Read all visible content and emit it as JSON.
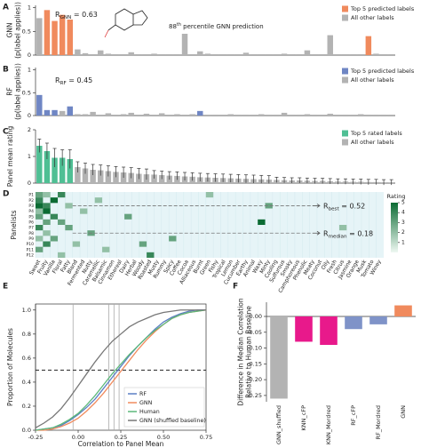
{
  "chart_data": [
    {
      "type": "bar",
      "panel": "A",
      "ylabel": [
        "GNN",
        "(p(label applies))"
      ],
      "ylim": [
        0,
        1.05
      ],
      "yticks": [
        0,
        0.5,
        1
      ],
      "legend": "upper right",
      "annotations": [
        {
          "text": "R",
          "sub": "GNN",
          "rest": " = 0.63"
        },
        {
          "text": "88",
          "sup": "th",
          "rest": " percentile GNN prediction"
        }
      ],
      "series": [
        {
          "name": "Top 5 predicted labels",
          "color": "#f08a5d",
          "values": [
            null,
            0.95,
            0.72,
            0.85,
            0.75,
            null,
            null,
            null,
            null,
            null,
            null,
            null,
            null,
            null,
            null,
            null,
            null,
            null,
            null,
            null,
            null,
            null,
            null,
            null,
            null,
            null,
            null,
            null,
            null,
            null,
            null,
            null,
            null,
            null,
            null,
            null,
            null,
            null,
            null,
            null,
            null,
            null,
            null,
            0.4,
            null,
            null,
            null
          ]
        },
        {
          "name": "All other labels",
          "color": "#b3b3b3",
          "values": [
            0.78,
            null,
            null,
            null,
            null,
            0.12,
            0.04,
            0.02,
            0.1,
            0.03,
            0.02,
            0.02,
            0.06,
            0.02,
            0.02,
            0.03,
            0.02,
            0.02,
            0.02,
            0.45,
            0.02,
            0.08,
            0.03,
            0.02,
            0.02,
            0.02,
            0.02,
            0.05,
            0.02,
            0.02,
            0.02,
            0.02,
            0.03,
            0.02,
            0.02,
            0.1,
            0.02,
            0.02,
            0.42,
            0.02,
            0.02,
            0.02,
            0.02,
            null,
            0.03,
            0.02,
            0.02
          ]
        }
      ]
    },
    {
      "type": "bar",
      "panel": "B",
      "ylabel": [
        "RF",
        "(p(label applies))"
      ],
      "ylim": [
        0,
        1.05
      ],
      "yticks": [
        0,
        0.5,
        1
      ],
      "legend": "upper right",
      "annotations": [
        {
          "text": "R",
          "sub": "RF",
          "rest": " = 0.45"
        }
      ],
      "series": [
        {
          "name": "Top 5 predicted labels",
          "color": "#6f86c4",
          "values": [
            0.45,
            0.12,
            0.12,
            null,
            0.2,
            null,
            null,
            null,
            null,
            null,
            null,
            null,
            null,
            null,
            null,
            null,
            null,
            null,
            null,
            null,
            null,
            0.1,
            null,
            null,
            null,
            null,
            null,
            null,
            null,
            null,
            null,
            null,
            null,
            null,
            null,
            null,
            null,
            null,
            null,
            null,
            null,
            null,
            null,
            null,
            null,
            null,
            null
          ]
        },
        {
          "name": "All other labels",
          "color": "#b3b3b3",
          "values": [
            null,
            null,
            null,
            0.1,
            null,
            0.03,
            0.03,
            0.08,
            0.02,
            0.05,
            0.02,
            0.03,
            0.06,
            0.02,
            0.04,
            0.02,
            0.05,
            0.02,
            0.03,
            0.02,
            0.03,
            null,
            0.02,
            0.02,
            0.02,
            0.03,
            0.02,
            0.02,
            0.02,
            0.03,
            0.02,
            0.02,
            0.06,
            0.02,
            0.02,
            0.03,
            0.02,
            0.02,
            0.04,
            0.02,
            0.02,
            0.02,
            0.03,
            0.02,
            0.02,
            0.02,
            0.02
          ]
        }
      ]
    },
    {
      "type": "bar",
      "panel": "C",
      "ylabel": [
        "Panel mean rating"
      ],
      "ylim": [
        0,
        2
      ],
      "yticks": [
        0,
        1,
        2
      ],
      "legend": "upper right",
      "series": [
        {
          "name": "Top 5 rated labels",
          "color": "#4fbf94",
          "values": [
            1.4,
            1.2,
            0.95,
            0.95,
            0.9,
            null,
            null,
            null,
            null,
            null,
            null,
            null,
            null,
            null,
            null,
            null,
            null,
            null,
            null,
            null,
            null,
            null,
            null,
            null,
            null,
            null,
            null,
            null,
            null,
            null,
            null,
            null,
            null,
            null,
            null,
            null,
            null,
            null,
            null,
            null,
            null,
            null,
            null,
            null,
            null,
            null,
            null
          ],
          "errors": [
            0.25,
            0.3,
            0.35,
            0.3,
            0.35,
            null,
            null,
            null,
            null,
            null,
            null,
            null,
            null,
            null,
            null,
            null,
            null,
            null,
            null,
            null,
            null,
            null,
            null,
            null,
            null,
            null,
            null,
            null,
            null,
            null,
            null,
            null,
            null,
            null,
            null,
            null,
            null,
            null,
            null,
            null,
            null,
            null,
            null,
            null,
            null,
            null,
            null
          ]
        },
        {
          "name": "All other labels",
          "color": "#b3b3b3",
          "values": [
            null,
            null,
            null,
            null,
            null,
            0.6,
            0.55,
            0.5,
            0.48,
            0.45,
            0.42,
            0.4,
            0.38,
            0.35,
            0.33,
            0.32,
            0.3,
            0.28,
            0.27,
            0.25,
            0.24,
            0.22,
            0.21,
            0.2,
            0.19,
            0.18,
            0.17,
            0.16,
            0.15,
            0.14,
            0.13,
            0.12,
            0.11,
            0.1,
            0.1,
            0.09,
            0.08,
            0.08,
            0.07,
            0.06,
            0.06,
            0.05,
            0.05,
            0.04,
            0.04,
            0.03,
            0.03
          ],
          "errors": [
            null,
            null,
            null,
            null,
            null,
            0.2,
            0.2,
            0.2,
            0.2,
            0.2,
            0.2,
            0.2,
            0.2,
            0.2,
            0.2,
            0.15,
            0.15,
            0.15,
            0.15,
            0.15,
            0.15,
            0.15,
            0.15,
            0.15,
            0.15,
            0.15,
            0.15,
            0.15,
            0.15,
            0.15,
            0.15,
            0.1,
            0.1,
            0.1,
            0.1,
            0.1,
            0.1,
            0.1,
            0.1,
            0.1,
            0.1,
            0.1,
            0.1,
            0.1,
            0.1,
            0.1,
            0.1
          ]
        }
      ]
    },
    {
      "type": "heatmap",
      "panel": "D",
      "ylabel": [
        "Panelists"
      ],
      "colorbar_title": "Rating",
      "clim": [
        0,
        5
      ],
      "cticks": [
        1,
        2,
        3,
        4,
        5
      ],
      "cmap": [
        "#eef8f2",
        "#0b6b33"
      ],
      "categories": [
        "Sweet",
        "Fruity",
        "Vanilla",
        "Floral",
        "Fatty",
        "Bland",
        "Fermented",
        "Nutty",
        "Caramellic",
        "Balsamic",
        "Cinnamon",
        "Ethereal",
        "Dairy",
        "Herbal",
        "Woody",
        "Roasted",
        "Musty",
        "Rummy",
        "Spicy",
        "Coffee",
        "Cocoa",
        "Alliaceous",
        "Burnt",
        "Green",
        "Fishy",
        "Tropical",
        "Lemon",
        "Cucumber",
        "Earthy",
        "Animal",
        "Waxy",
        "Minty",
        "Cooling",
        "Sulfurous",
        "Smoky",
        "Camphoreous",
        "Phenolic",
        "Meaty",
        "Coconut",
        "Oily",
        "Fresh",
        "Citrus",
        "Jasmine",
        "Orange",
        "Musk",
        "Tomato",
        "Winey"
      ],
      "rows": [
        "P1",
        "P2",
        "P3",
        "P4",
        "P5",
        "P6",
        "P7",
        "P8",
        "P9",
        "P10",
        "P11",
        "P12"
      ],
      "annotations": [
        {
          "row": "P3",
          "text": "R",
          "sub": "best",
          "rest": " = 0.52"
        },
        {
          "row": "P8",
          "text": "R",
          "sub": "median",
          "rest": " = 0.18"
        }
      ],
      "cells": [
        [
          "P1",
          "Sweet",
          3
        ],
        [
          "P2",
          "Sweet",
          4
        ],
        [
          "P3",
          "Sweet",
          5
        ],
        [
          "P4",
          "Sweet",
          2
        ],
        [
          "P5",
          "Sweet",
          3
        ],
        [
          "P7",
          "Sweet",
          4
        ],
        [
          "P9",
          "Sweet",
          2
        ],
        [
          "P11",
          "Sweet",
          3
        ],
        [
          "P1",
          "Fruity",
          2
        ],
        [
          "P3",
          "Fruity",
          4
        ],
        [
          "P4",
          "Fruity",
          5
        ],
        [
          "P6",
          "Fruity",
          3
        ],
        [
          "P8",
          "Fruity",
          2
        ],
        [
          "P10",
          "Fruity",
          4
        ],
        [
          "P2",
          "Vanilla",
          5
        ],
        [
          "P5",
          "Vanilla",
          4
        ],
        [
          "P9",
          "Vanilla",
          3
        ],
        [
          "P1",
          "Floral",
          4
        ],
        [
          "P6",
          "Floral",
          3
        ],
        [
          "P12",
          "Floral",
          2
        ],
        [
          "P3",
          "Fatty",
          2
        ],
        [
          "P7",
          "Fatty",
          3
        ],
        [
          "P10",
          "Bland",
          2
        ],
        [
          "P4",
          "Fermented",
          2
        ],
        [
          "P8",
          "Nutty",
          3
        ],
        [
          "P2",
          "Caramellic",
          2
        ],
        [
          "P11",
          "Balsamic",
          2
        ],
        [
          "P5",
          "Dairy",
          3
        ],
        [
          "P12",
          "Roasted",
          4
        ],
        [
          "P9",
          "Spicy",
          3
        ],
        [
          "P1",
          "Green",
          2
        ],
        [
          "P6",
          "Waxy",
          5
        ],
        [
          "P3",
          "Minty",
          3
        ],
        [
          "P7",
          "Citrus",
          2
        ],
        [
          "P10",
          "Woody",
          3
        ]
      ]
    },
    {
      "type": "line",
      "panel": "E",
      "xlabel": "Correlation to Panel Mean",
      "ylabel": [
        "Proportion of Molecules"
      ],
      "legend": "lower right",
      "xlim": [
        -0.25,
        0.75
      ],
      "ylim": [
        0,
        1.05
      ],
      "xticks": [
        -0.25,
        {
          "value": 0,
          "label": "0.00"
        },
        0.25,
        {
          "value": 0.5,
          "label": "0.50"
        },
        0.75
      ],
      "yticks": [
        {
          "value": 0,
          "label": "0.0"
        },
        0.2,
        0.4,
        0.6,
        0.8,
        {
          "value": 1,
          "label": "1.0"
        }
      ],
      "vlines": [
        -0.03,
        0.18,
        0.21,
        0.24
      ],
      "hline": 0.5,
      "x": [
        -0.25,
        -0.2,
        -0.15,
        -0.1,
        -0.05,
        0,
        0.05,
        0.1,
        0.15,
        0.2,
        0.25,
        0.3,
        0.35,
        0.4,
        0.45,
        0.5,
        0.55,
        0.6,
        0.65,
        0.7,
        0.75
      ],
      "series": [
        {
          "name": "RF",
          "color": "#5b7fc4",
          "values": [
            0,
            0.01,
            0.02,
            0.04,
            0.08,
            0.13,
            0.19,
            0.26,
            0.35,
            0.44,
            0.53,
            0.62,
            0.7,
            0.77,
            0.84,
            0.9,
            0.94,
            0.97,
            0.99,
            1,
            1
          ]
        },
        {
          "name": "GNN",
          "color": "#f08a5d",
          "values": [
            0,
            0,
            0.01,
            0.03,
            0.06,
            0.1,
            0.16,
            0.23,
            0.31,
            0.4,
            0.49,
            0.58,
            0.67,
            0.75,
            0.82,
            0.88,
            0.93,
            0.96,
            0.98,
            0.99,
            1
          ]
        },
        {
          "name": "Human",
          "color": "#5cb87a",
          "values": [
            0,
            0.01,
            0.02,
            0.05,
            0.09,
            0.14,
            0.21,
            0.29,
            0.38,
            0.47,
            0.55,
            0.63,
            0.7,
            0.77,
            0.83,
            0.88,
            0.93,
            0.96,
            0.98,
            0.99,
            1
          ]
        },
        {
          "name": "GNN (shuffled baseline)",
          "color": "#777777",
          "values": [
            0.02,
            0.06,
            0.11,
            0.18,
            0.27,
            0.37,
            0.47,
            0.57,
            0.66,
            0.74,
            0.8,
            0.86,
            0.9,
            0.93,
            0.96,
            0.98,
            0.99,
            1,
            1,
            1,
            1
          ]
        }
      ]
    },
    {
      "type": "bar",
      "panel": "F",
      "ylabel": [
        "Difference in Median Correlation",
        "Relative to Human Baseline"
      ],
      "ylim": [
        -0.27,
        0.045
      ],
      "yticks": [
        {
          "value": 0,
          "label": "0.00"
        },
        -0.05,
        {
          "value": -0.1,
          "label": "-0.10"
        },
        -0.15,
        {
          "value": -0.2,
          "label": "-0.20"
        },
        -0.25
      ],
      "categories": [
        "GNN_shuffled",
        "KNN_cFP",
        "KNN_Mordred",
        "RF_cFP",
        "RF_Mordred",
        "GNN"
      ],
      "values": [
        -0.26,
        -0.08,
        -0.09,
        -0.04,
        -0.025,
        0.035
      ],
      "colors": [
        "#b3b3b3",
        "#e8198b",
        "#e8198b",
        "#7f93c8",
        "#7f93c8",
        "#f08a5d"
      ]
    }
  ]
}
